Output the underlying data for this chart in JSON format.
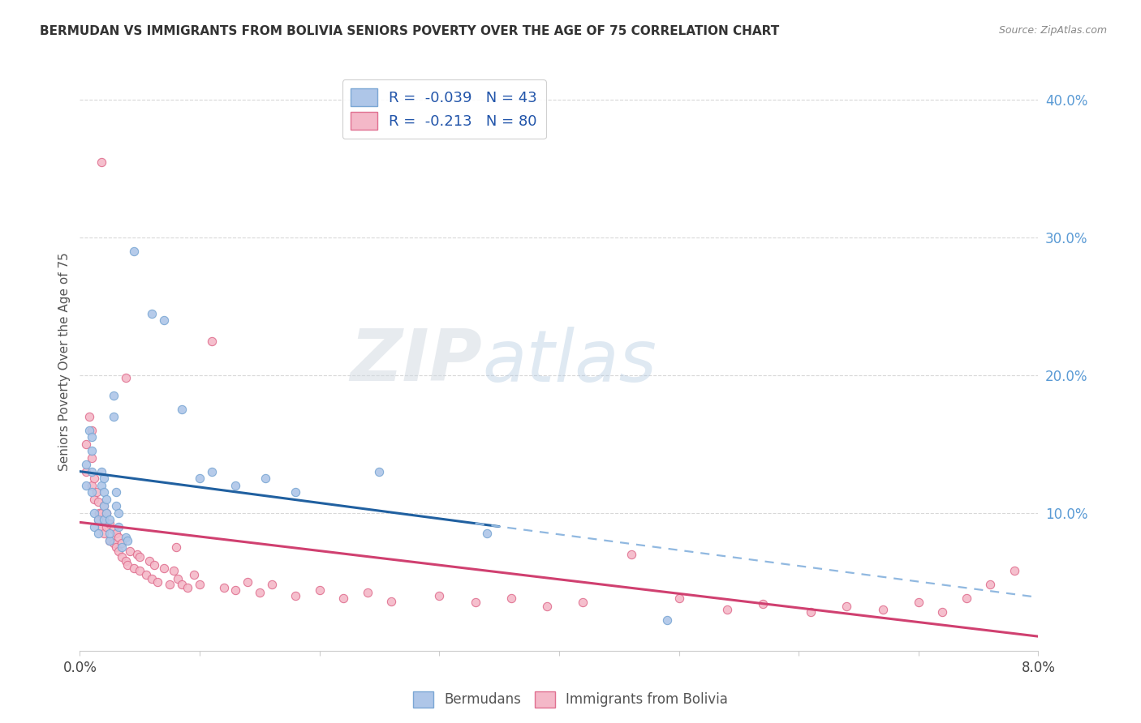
{
  "title": "BERMUDAN VS IMMIGRANTS FROM BOLIVIA SENIORS POVERTY OVER THE AGE OF 75 CORRELATION CHART",
  "source": "Source: ZipAtlas.com",
  "ylabel": "Seniors Poverty Over the Age of 75",
  "x_min": 0.0,
  "x_max": 0.08,
  "y_min": 0.0,
  "y_max": 0.42,
  "right_yticks": [
    0.1,
    0.2,
    0.3,
    0.4
  ],
  "right_yticklabels": [
    "10.0%",
    "20.0%",
    "30.0%",
    "40.0%"
  ],
  "bottom_xticks": [
    0.0,
    0.01,
    0.02,
    0.03,
    0.04,
    0.05,
    0.06,
    0.07,
    0.08
  ],
  "bottom_xticklabels": [
    "0.0%",
    "",
    "",
    "",
    "",
    "",
    "",
    "",
    "8.0%"
  ],
  "blue_R": -0.039,
  "blue_N": 43,
  "pink_R": -0.213,
  "pink_N": 80,
  "blue_color": "#aec6e8",
  "blue_edge": "#7ba7d4",
  "pink_color": "#f4b8c8",
  "pink_edge": "#e07090",
  "blue_line_color": "#2060a0",
  "pink_line_color": "#d04070",
  "blue_dashed_color": "#90b8e0",
  "legend_label_blue": "Bermudans",
  "legend_label_pink": "Immigrants from Bolivia",
  "watermark": "ZIPatlas",
  "blue_scatter_x": [
    0.0005,
    0.0005,
    0.0008,
    0.001,
    0.001,
    0.001,
    0.001,
    0.0012,
    0.0012,
    0.0015,
    0.0015,
    0.0018,
    0.0018,
    0.002,
    0.002,
    0.002,
    0.002,
    0.0022,
    0.0022,
    0.0025,
    0.0025,
    0.0025,
    0.0028,
    0.0028,
    0.003,
    0.003,
    0.0032,
    0.0032,
    0.0035,
    0.0038,
    0.004,
    0.0045,
    0.006,
    0.007,
    0.0085,
    0.01,
    0.011,
    0.013,
    0.0155,
    0.018,
    0.025,
    0.034,
    0.049
  ],
  "blue_scatter_y": [
    0.12,
    0.135,
    0.16,
    0.115,
    0.13,
    0.145,
    0.155,
    0.09,
    0.1,
    0.085,
    0.095,
    0.12,
    0.13,
    0.095,
    0.105,
    0.115,
    0.125,
    0.1,
    0.11,
    0.08,
    0.085,
    0.095,
    0.17,
    0.185,
    0.105,
    0.115,
    0.09,
    0.1,
    0.075,
    0.082,
    0.08,
    0.29,
    0.245,
    0.24,
    0.175,
    0.125,
    0.13,
    0.12,
    0.125,
    0.115,
    0.13,
    0.085,
    0.022
  ],
  "pink_scatter_x": [
    0.0005,
    0.0005,
    0.0008,
    0.001,
    0.001,
    0.001,
    0.0012,
    0.0012,
    0.0014,
    0.0015,
    0.0015,
    0.0016,
    0.0018,
    0.0018,
    0.0018,
    0.002,
    0.002,
    0.002,
    0.0022,
    0.0022,
    0.0025,
    0.0025,
    0.0028,
    0.0028,
    0.003,
    0.003,
    0.0032,
    0.0032,
    0.0035,
    0.0035,
    0.0038,
    0.0038,
    0.004,
    0.0042,
    0.0045,
    0.0048,
    0.005,
    0.005,
    0.0055,
    0.0058,
    0.006,
    0.0062,
    0.0065,
    0.007,
    0.0075,
    0.0078,
    0.008,
    0.0082,
    0.0085,
    0.009,
    0.0095,
    0.01,
    0.011,
    0.012,
    0.013,
    0.014,
    0.015,
    0.016,
    0.018,
    0.02,
    0.022,
    0.024,
    0.026,
    0.03,
    0.033,
    0.036,
    0.039,
    0.042,
    0.046,
    0.05,
    0.054,
    0.057,
    0.061,
    0.064,
    0.067,
    0.07,
    0.072,
    0.074,
    0.076,
    0.078
  ],
  "pink_scatter_y": [
    0.13,
    0.15,
    0.17,
    0.12,
    0.14,
    0.16,
    0.11,
    0.125,
    0.115,
    0.095,
    0.108,
    0.1,
    0.09,
    0.1,
    0.355,
    0.085,
    0.095,
    0.105,
    0.09,
    0.1,
    0.08,
    0.092,
    0.078,
    0.088,
    0.075,
    0.085,
    0.072,
    0.082,
    0.068,
    0.078,
    0.065,
    0.198,
    0.062,
    0.072,
    0.06,
    0.07,
    0.058,
    0.068,
    0.055,
    0.065,
    0.052,
    0.062,
    0.05,
    0.06,
    0.048,
    0.058,
    0.075,
    0.052,
    0.048,
    0.046,
    0.055,
    0.048,
    0.225,
    0.046,
    0.044,
    0.05,
    0.042,
    0.048,
    0.04,
    0.044,
    0.038,
    0.042,
    0.036,
    0.04,
    0.035,
    0.038,
    0.032,
    0.035,
    0.07,
    0.038,
    0.03,
    0.034,
    0.028,
    0.032,
    0.03,
    0.035,
    0.028,
    0.038,
    0.048,
    0.058
  ]
}
